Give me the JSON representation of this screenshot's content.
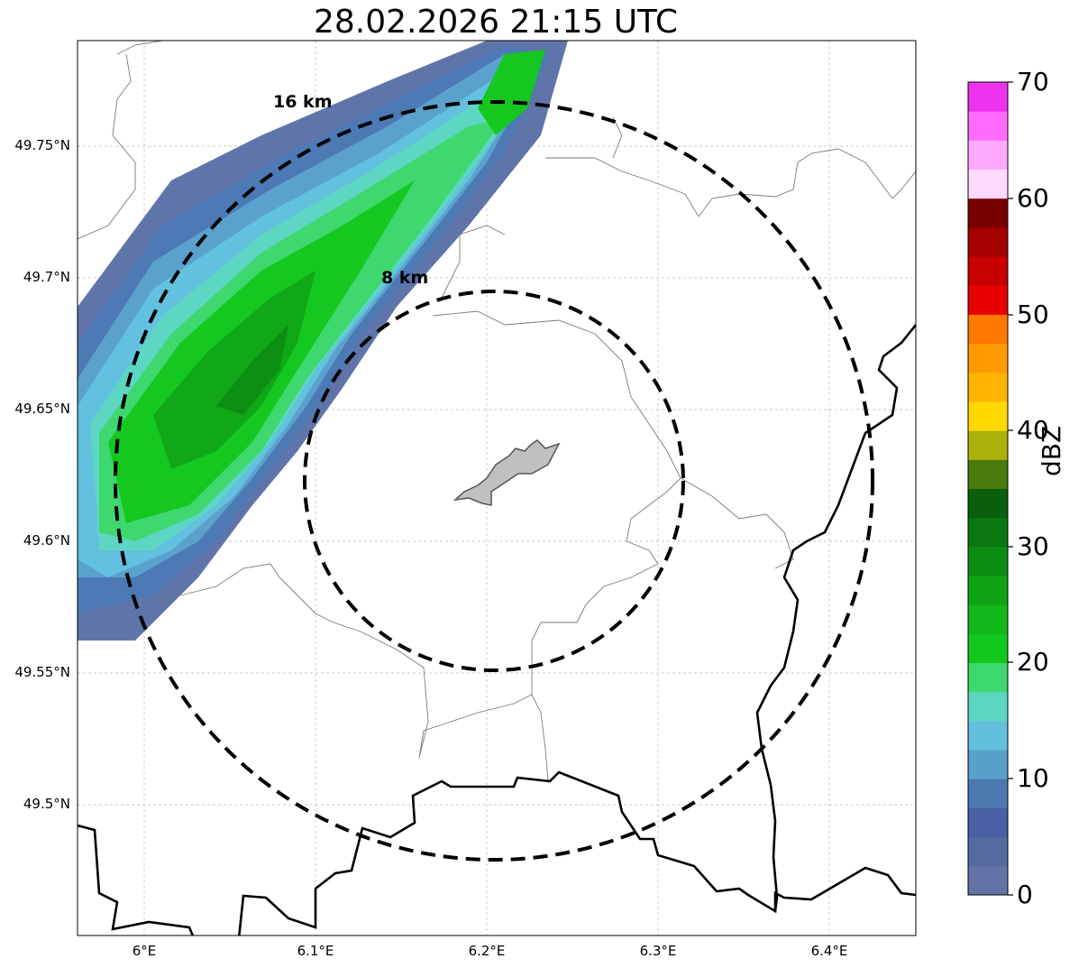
{
  "title": "28.02.2026 21:15 UTC",
  "map": {
    "lat_ticks": [
      "49.75°N",
      "49.7°N",
      "49.65°N",
      "49.6°N",
      "49.55°N",
      "49.5°N"
    ],
    "lon_ticks": [
      "6°E",
      "6.1°E",
      "6.2°E",
      "6.3°E",
      "6.4°E"
    ],
    "range_rings": [
      {
        "label": "8 km",
        "radius_km": 8
      },
      {
        "label": "16 km",
        "radius_km": 16
      }
    ],
    "grid": true
  },
  "colorbar": {
    "label": "dBZ",
    "ticks": [
      "0",
      "10",
      "20",
      "30",
      "40",
      "50",
      "60",
      "70"
    ],
    "range": [
      0,
      70
    ],
    "colors": [
      "#6173a6",
      "#566aa2",
      "#4a60a4",
      "#4b78b0",
      "#589fc9",
      "#62c0dd",
      "#5cd6c2",
      "#3dd86e",
      "#12c81e",
      "#12b71a",
      "#0fa414",
      "#0c8d12",
      "#0b7710",
      "#0a5f0c",
      "#4a7a0a",
      "#aab20a",
      "#ffd800",
      "#ffb400",
      "#ff9a00",
      "#ff7800",
      "#e60000",
      "#c80000",
      "#a50000",
      "#7a0000",
      "#ffd9ff",
      "#ffaaff",
      "#ff6bff",
      "#ee33ee"
    ]
  }
}
